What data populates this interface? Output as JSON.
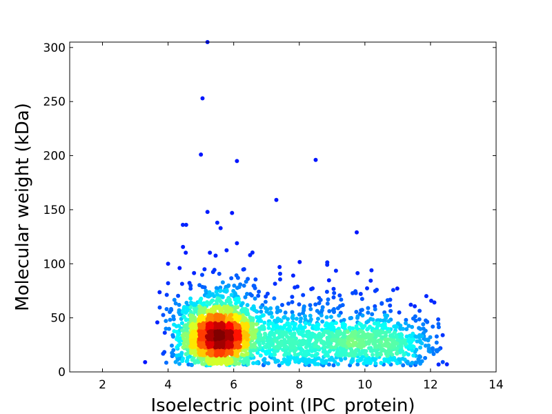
{
  "chart_data": {
    "type": "scatter",
    "title": "",
    "xlabel": "Isoelectric point (IPC_protein)",
    "ylabel": "Molecular weight (kDa)",
    "xlim": [
      1,
      14
    ],
    "ylim": [
      0,
      305
    ],
    "xticks": [
      2,
      4,
      6,
      8,
      10,
      12,
      14
    ],
    "yticks": [
      0,
      50,
      100,
      150,
      200,
      250,
      300
    ],
    "grid": false,
    "legend": "none",
    "color_scale": "jet (point density: blue = low, red = high)",
    "colors": {
      "low_density": "#0000cd",
      "mid_density": "#00c8ff",
      "high_density": "#ff2000",
      "peak_density": "#a00000"
    },
    "outlier_points": [
      {
        "x": 5.2,
        "y": 305
      },
      {
        "x": 5.05,
        "y": 253
      },
      {
        "x": 5.0,
        "y": 201
      },
      {
        "x": 6.1,
        "y": 195
      },
      {
        "x": 8.5,
        "y": 196
      },
      {
        "x": 7.3,
        "y": 159
      },
      {
        "x": 5.2,
        "y": 148
      },
      {
        "x": 5.95,
        "y": 147
      },
      {
        "x": 4.45,
        "y": 136
      },
      {
        "x": 4.55,
        "y": 136
      },
      {
        "x": 9.75,
        "y": 129
      },
      {
        "x": 5.5,
        "y": 138
      },
      {
        "x": 5.6,
        "y": 133
      },
      {
        "x": 6.1,
        "y": 119
      },
      {
        "x": 4.0,
        "y": 100
      },
      {
        "x": 4.0,
        "y": 82
      },
      {
        "x": 4.35,
        "y": 96
      },
      {
        "x": 6.5,
        "y": 108
      },
      {
        "x": 7.4,
        "y": 97
      },
      {
        "x": 8.85,
        "y": 99
      },
      {
        "x": 10.2,
        "y": 94
      },
      {
        "x": 3.3,
        "y": 9
      },
      {
        "x": 12.5,
        "y": 7
      },
      {
        "x": 12.2,
        "y": 19
      },
      {
        "x": 11.85,
        "y": 38
      }
    ],
    "density_clusters": [
      {
        "center_x": 5.5,
        "center_y": 33,
        "count": 1700,
        "spread_x": 0.55,
        "spread_y": 14
      },
      {
        "center_x": 5.6,
        "center_y": 55,
        "count": 260,
        "spread_x": 0.7,
        "spread_y": 22
      },
      {
        "center_x": 9.2,
        "center_y": 28,
        "count": 650,
        "spread_x": 1.4,
        "spread_y": 13
      },
      {
        "center_x": 7.5,
        "center_y": 30,
        "count": 260,
        "spread_x": 0.8,
        "spread_y": 14
      },
      {
        "center_x": 10.6,
        "center_y": 28,
        "count": 260,
        "spread_x": 0.7,
        "spread_y": 12
      },
      {
        "center_x": 8.5,
        "center_y": 55,
        "count": 140,
        "spread_x": 1.6,
        "spread_y": 18
      }
    ]
  }
}
